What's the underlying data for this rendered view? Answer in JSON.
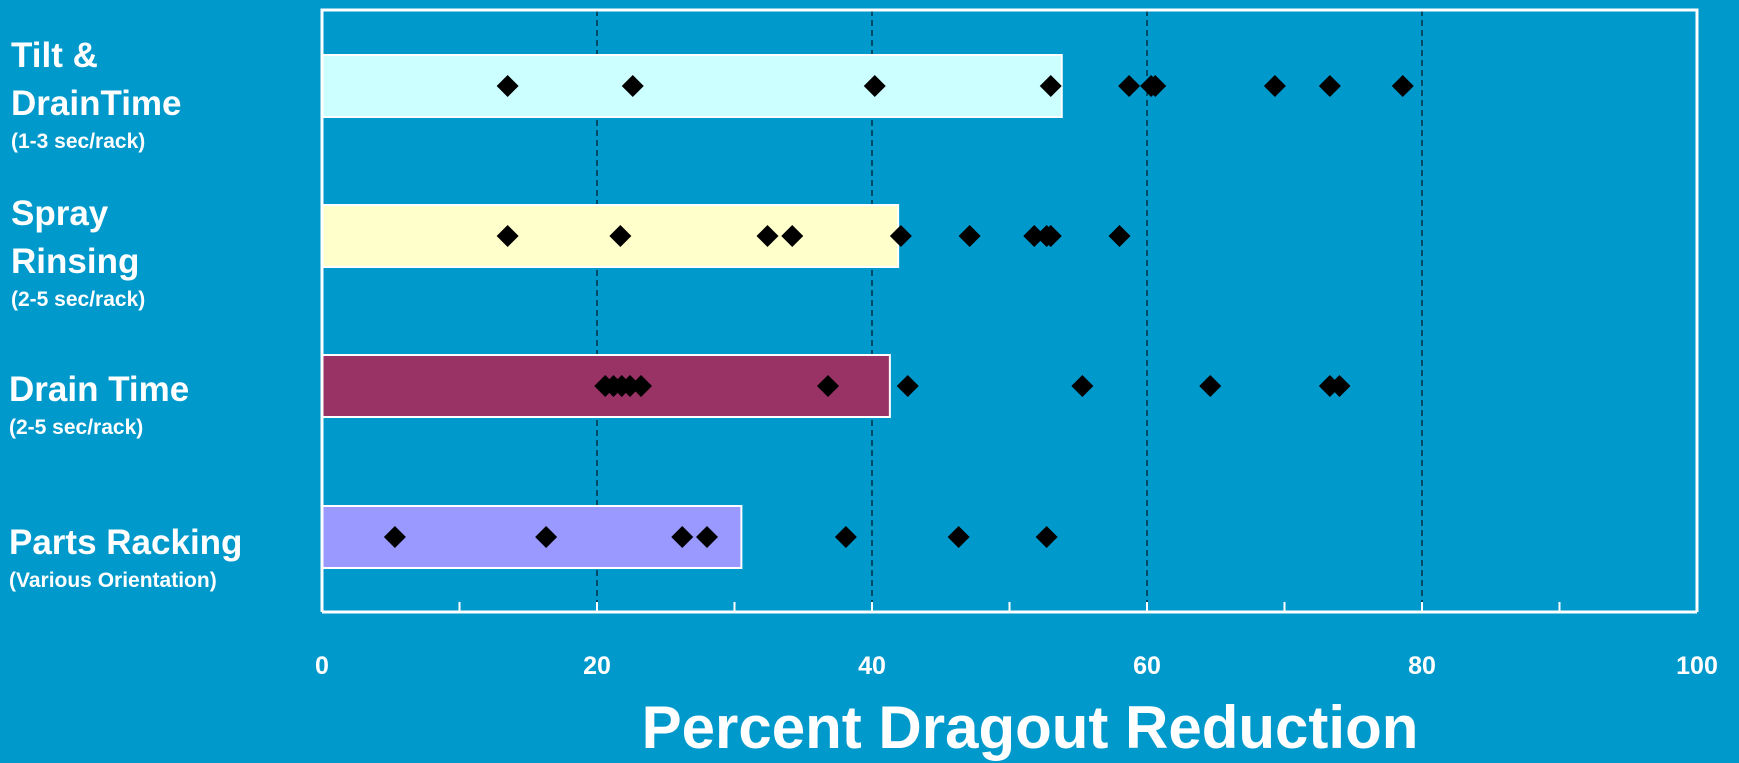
{
  "colors": {
    "background": "#0099cc",
    "axis": "#ffffff",
    "marker": "#000000"
  },
  "chart_data": {
    "type": "bar",
    "orientation": "horizontal",
    "xlabel": "Percent Dragout Reduction",
    "xlim": [
      0,
      100
    ],
    "xticks": [
      0,
      20,
      40,
      60,
      80,
      100
    ],
    "minor_tick_step": 10,
    "grid": "vertical dashed at major ticks",
    "categories": [
      {
        "label": "Tilt & DrainTime",
        "label_lines": [
          "Tilt &",
          "DrainTime"
        ],
        "sublabel": "(1-3 sec/rack)",
        "bar_value": 53.8,
        "bar_color": "#ccffff",
        "points": [
          13.5,
          22.6,
          40.2,
          53.0,
          58.7,
          60.3,
          60.6,
          69.3,
          73.3,
          78.6
        ]
      },
      {
        "label": "Spray Rinsing",
        "label_lines": [
          "Spray",
          "Rinsing"
        ],
        "sublabel": "(2-5 sec/rack)",
        "bar_value": 41.9,
        "bar_color": "#ffffcc",
        "points": [
          13.5,
          21.7,
          32.4,
          34.2,
          42.1,
          47.1,
          51.8,
          52.7,
          53.0,
          58.0
        ]
      },
      {
        "label": "Drain Time",
        "label_lines": [
          "Drain Time"
        ],
        "sublabel": "(2-5 sec/rack)",
        "bar_value": 41.3,
        "bar_color": "#993366",
        "points": [
          20.6,
          21.2,
          21.8,
          22.4,
          23.2,
          36.8,
          42.6,
          55.3,
          64.6,
          73.3,
          74.0
        ]
      },
      {
        "label": "Parts Racking",
        "label_lines": [
          "Parts Racking"
        ],
        "sublabel": "(Various Orientation)",
        "bar_value": 30.5,
        "bar_color": "#9999ff",
        "points": [
          5.3,
          16.3,
          26.2,
          28.0,
          38.1,
          46.3,
          52.7
        ]
      }
    ]
  }
}
